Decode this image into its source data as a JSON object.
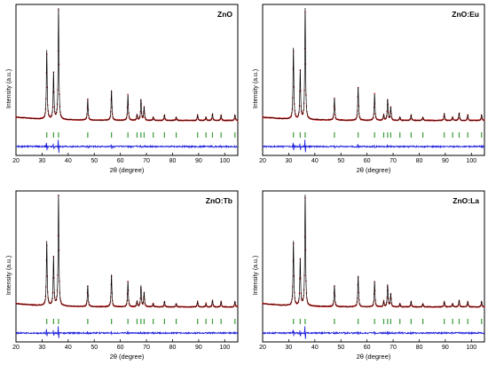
{
  "chart_data": [
    {
      "type": "line",
      "panel_label": "ZnO",
      "xlabel": "2θ (degree)",
      "ylabel": "Intensity (a.u.)",
      "xlim": [
        20,
        105
      ],
      "xticks": [
        20,
        30,
        40,
        50,
        60,
        70,
        80,
        90,
        100
      ],
      "peaks": [
        {
          "x": 31.8,
          "y": 0.62
        },
        {
          "x": 34.4,
          "y": 0.42
        },
        {
          "x": 36.3,
          "y": 1.0
        },
        {
          "x": 47.5,
          "y": 0.19
        },
        {
          "x": 56.6,
          "y": 0.27
        },
        {
          "x": 62.9,
          "y": 0.23
        },
        {
          "x": 66.4,
          "y": 0.05
        },
        {
          "x": 67.9,
          "y": 0.19
        },
        {
          "x": 69.1,
          "y": 0.12
        },
        {
          "x": 72.6,
          "y": 0.03
        },
        {
          "x": 76.9,
          "y": 0.05
        },
        {
          "x": 81.4,
          "y": 0.03
        },
        {
          "x": 89.6,
          "y": 0.05
        },
        {
          "x": 92.8,
          "y": 0.03
        },
        {
          "x": 95.3,
          "y": 0.06
        },
        {
          "x": 98.6,
          "y": 0.05
        },
        {
          "x": 103.9,
          "y": 0.05
        }
      ],
      "bragg_ticks": [
        31.8,
        34.4,
        36.3,
        47.5,
        56.6,
        62.9,
        66.4,
        67.9,
        69.1,
        72.6,
        76.9,
        81.4,
        89.6,
        92.8,
        95.3,
        98.6,
        103.9
      ],
      "colors": {
        "observed": "#e02020",
        "calculated": "#000000",
        "difference": "#1a1adb",
        "bragg": "#3a9a3a"
      }
    },
    {
      "type": "line",
      "panel_label": "ZnO:Eu",
      "xlabel": "2θ (degree)",
      "ylabel": "Intensity (a.u.)",
      "xlim": [
        20,
        105
      ],
      "xticks": [
        20,
        30,
        40,
        50,
        60,
        70,
        80,
        90,
        100
      ],
      "peaks": [
        {
          "x": 31.8,
          "y": 0.64
        },
        {
          "x": 34.4,
          "y": 0.44
        },
        {
          "x": 36.3,
          "y": 1.0
        },
        {
          "x": 47.5,
          "y": 0.2
        },
        {
          "x": 56.6,
          "y": 0.3
        },
        {
          "x": 62.9,
          "y": 0.24
        },
        {
          "x": 66.4,
          "y": 0.05
        },
        {
          "x": 67.9,
          "y": 0.19
        },
        {
          "x": 69.1,
          "y": 0.12
        },
        {
          "x": 72.6,
          "y": 0.03
        },
        {
          "x": 76.9,
          "y": 0.05
        },
        {
          "x": 81.4,
          "y": 0.03
        },
        {
          "x": 89.6,
          "y": 0.06
        },
        {
          "x": 92.8,
          "y": 0.03
        },
        {
          "x": 95.3,
          "y": 0.07
        },
        {
          "x": 98.6,
          "y": 0.05
        },
        {
          "x": 103.9,
          "y": 0.05
        }
      ],
      "bragg_ticks": [
        31.8,
        34.4,
        36.3,
        47.5,
        56.6,
        62.9,
        66.4,
        67.9,
        69.1,
        72.6,
        76.9,
        81.4,
        89.6,
        92.8,
        95.3,
        98.6,
        103.9
      ],
      "colors": {
        "observed": "#e02020",
        "calculated": "#000000",
        "difference": "#1a1adb",
        "bragg": "#3a9a3a"
      }
    },
    {
      "type": "line",
      "panel_label": "ZnO:Tb",
      "xlabel": "2θ (degree)",
      "ylabel": "Intensity (a.u.)",
      "xlim": [
        20,
        105
      ],
      "xticks": [
        20,
        30,
        40,
        50,
        60,
        70,
        80,
        90,
        100
      ],
      "peaks": [
        {
          "x": 31.8,
          "y": 0.58
        },
        {
          "x": 34.4,
          "y": 0.44
        },
        {
          "x": 36.3,
          "y": 1.0
        },
        {
          "x": 47.5,
          "y": 0.19
        },
        {
          "x": 56.6,
          "y": 0.29
        },
        {
          "x": 62.9,
          "y": 0.23
        },
        {
          "x": 66.4,
          "y": 0.05
        },
        {
          "x": 67.9,
          "y": 0.19
        },
        {
          "x": 69.1,
          "y": 0.13
        },
        {
          "x": 72.6,
          "y": 0.03
        },
        {
          "x": 76.9,
          "y": 0.05
        },
        {
          "x": 81.4,
          "y": 0.03
        },
        {
          "x": 89.6,
          "y": 0.05
        },
        {
          "x": 92.8,
          "y": 0.03
        },
        {
          "x": 95.3,
          "y": 0.06
        },
        {
          "x": 98.6,
          "y": 0.05
        },
        {
          "x": 103.9,
          "y": 0.05
        }
      ],
      "bragg_ticks": [
        31.8,
        34.4,
        36.3,
        47.5,
        56.6,
        62.9,
        66.4,
        67.9,
        69.1,
        72.6,
        76.9,
        81.4,
        89.6,
        92.8,
        95.3,
        98.6,
        103.9
      ],
      "colors": {
        "observed": "#e02020",
        "calculated": "#000000",
        "difference": "#1a1adb",
        "bragg": "#3a9a3a"
      }
    },
    {
      "type": "line",
      "panel_label": "ZnO:La",
      "xlabel": "2θ (degree)",
      "ylabel": "Intensity (a.u.)",
      "xlim": [
        20,
        105
      ],
      "xticks": [
        20,
        30,
        40,
        50,
        60,
        70,
        80,
        90,
        100
      ],
      "peaks": [
        {
          "x": 31.8,
          "y": 0.58
        },
        {
          "x": 34.4,
          "y": 0.42
        },
        {
          "x": 36.3,
          "y": 1.0
        },
        {
          "x": 47.5,
          "y": 0.19
        },
        {
          "x": 56.6,
          "y": 0.28
        },
        {
          "x": 62.9,
          "y": 0.23
        },
        {
          "x": 66.4,
          "y": 0.05
        },
        {
          "x": 67.9,
          "y": 0.2
        },
        {
          "x": 69.1,
          "y": 0.12
        },
        {
          "x": 72.6,
          "y": 0.03
        },
        {
          "x": 76.9,
          "y": 0.05
        },
        {
          "x": 81.4,
          "y": 0.03
        },
        {
          "x": 89.6,
          "y": 0.05
        },
        {
          "x": 92.8,
          "y": 0.03
        },
        {
          "x": 95.3,
          "y": 0.06
        },
        {
          "x": 98.6,
          "y": 0.05
        },
        {
          "x": 103.9,
          "y": 0.05
        }
      ],
      "bragg_ticks": [
        31.8,
        34.4,
        36.3,
        47.5,
        56.6,
        62.9,
        66.4,
        67.9,
        69.1,
        72.6,
        76.9,
        81.4,
        89.6,
        92.8,
        95.3,
        98.6,
        103.9
      ],
      "colors": {
        "observed": "#e02020",
        "calculated": "#000000",
        "difference": "#1a1adb",
        "bragg": "#3a9a3a"
      }
    }
  ]
}
